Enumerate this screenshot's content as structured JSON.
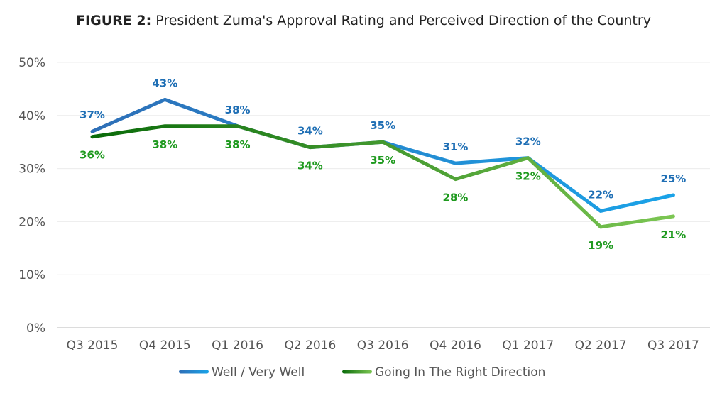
{
  "chart_data": {
    "type": "line",
    "title_prefix": "FIGURE 2:",
    "title": "President Zuma's Approval Rating and Perceived Direction of the Country",
    "xlabel": "",
    "ylabel": "",
    "categories": [
      "Q3 2015",
      "Q4 2015",
      "Q1 2016",
      "Q2 2016",
      "Q3 2016",
      "Q4 2016",
      "Q1 2017",
      "Q2 2017",
      "Q3 2017"
    ],
    "ylim": [
      0,
      50
    ],
    "yticks": [
      0,
      10,
      20,
      30,
      40,
      50
    ],
    "ytick_labels": [
      "0%",
      "10%",
      "20%",
      "30%",
      "40%",
      "50%"
    ],
    "grid": true,
    "legend_position": "bottom",
    "series": [
      {
        "name": "Well / Very Well",
        "values": [
          37,
          43,
          38,
          34,
          35,
          31,
          32,
          22,
          25
        ],
        "labels": [
          "37%",
          "43%",
          "38%",
          "34%",
          "35%",
          "31%",
          "32%",
          "22%",
          "25%"
        ],
        "color_start": "#2e6fb7",
        "color_end": "#1aa3e8",
        "label_color": "#1f6fb5",
        "label_position": "above"
      },
      {
        "name": "Going In The Right Direction",
        "values": [
          36,
          38,
          38,
          34,
          35,
          28,
          32,
          19,
          21
        ],
        "labels": [
          "36%",
          "38%",
          "38%",
          "34%",
          "35%",
          "28%",
          "32%",
          "19%",
          "21%"
        ],
        "color_start": "#0a6b0a",
        "color_end": "#7cc653",
        "label_color": "#1f9a1f",
        "label_position": "below"
      }
    ]
  }
}
